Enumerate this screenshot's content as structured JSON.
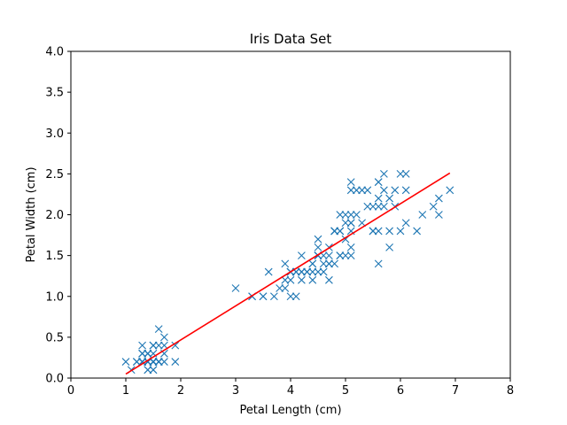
{
  "chart_data": {
    "type": "scatter",
    "title": "Iris Data Set",
    "xlabel": "Petal Length (cm)",
    "ylabel": "Petal Width (cm)",
    "xlim": [
      0,
      8
    ],
    "ylim": [
      0,
      4
    ],
    "xticks": [
      0,
      1,
      2,
      3,
      4,
      5,
      6,
      7,
      8
    ],
    "xtick_labels": [
      "0",
      "1",
      "2",
      "3",
      "4",
      "5",
      "6",
      "7",
      "8"
    ],
    "yticks": [
      0.0,
      0.5,
      1.0,
      1.5,
      2.0,
      2.5,
      3.0,
      3.5,
      4.0
    ],
    "ytick_labels": [
      "0.0",
      "0.5",
      "1.0",
      "1.5",
      "2.0",
      "2.5",
      "3.0",
      "3.5",
      "4.0"
    ],
    "grid": false,
    "legend": "none",
    "series": [
      {
        "marker": "x",
        "color": "#1f77b4",
        "points": [
          [
            1.4,
            0.2
          ],
          [
            1.4,
            0.2
          ],
          [
            1.3,
            0.2
          ],
          [
            1.5,
            0.2
          ],
          [
            1.4,
            0.2
          ],
          [
            1.7,
            0.4
          ],
          [
            1.4,
            0.3
          ],
          [
            1.5,
            0.2
          ],
          [
            1.4,
            0.2
          ],
          [
            1.5,
            0.1
          ],
          [
            1.5,
            0.2
          ],
          [
            1.6,
            0.2
          ],
          [
            1.4,
            0.1
          ],
          [
            1.1,
            0.1
          ],
          [
            1.2,
            0.2
          ],
          [
            1.5,
            0.4
          ],
          [
            1.3,
            0.4
          ],
          [
            1.4,
            0.3
          ],
          [
            1.7,
            0.3
          ],
          [
            1.5,
            0.3
          ],
          [
            1.7,
            0.2
          ],
          [
            1.5,
            0.4
          ],
          [
            1.0,
            0.2
          ],
          [
            1.7,
            0.5
          ],
          [
            1.9,
            0.2
          ],
          [
            1.6,
            0.2
          ],
          [
            1.6,
            0.4
          ],
          [
            1.5,
            0.2
          ],
          [
            1.4,
            0.2
          ],
          [
            1.6,
            0.2
          ],
          [
            1.6,
            0.2
          ],
          [
            1.5,
            0.4
          ],
          [
            1.5,
            0.1
          ],
          [
            1.4,
            0.2
          ],
          [
            1.5,
            0.2
          ],
          [
            1.2,
            0.2
          ],
          [
            1.3,
            0.2
          ],
          [
            1.4,
            0.1
          ],
          [
            1.3,
            0.2
          ],
          [
            1.5,
            0.2
          ],
          [
            1.3,
            0.3
          ],
          [
            1.3,
            0.3
          ],
          [
            1.3,
            0.2
          ],
          [
            1.6,
            0.6
          ],
          [
            1.9,
            0.4
          ],
          [
            1.4,
            0.3
          ],
          [
            1.6,
            0.2
          ],
          [
            1.4,
            0.2
          ],
          [
            1.5,
            0.2
          ],
          [
            1.4,
            0.2
          ],
          [
            4.7,
            1.4
          ],
          [
            4.5,
            1.5
          ],
          [
            4.9,
            1.5
          ],
          [
            4.0,
            1.3
          ],
          [
            4.6,
            1.5
          ],
          [
            4.5,
            1.3
          ],
          [
            4.7,
            1.6
          ],
          [
            3.3,
            1.0
          ],
          [
            4.6,
            1.3
          ],
          [
            3.9,
            1.4
          ],
          [
            3.5,
            1.0
          ],
          [
            4.2,
            1.5
          ],
          [
            4.0,
            1.0
          ],
          [
            4.7,
            1.4
          ],
          [
            3.6,
            1.3
          ],
          [
            4.4,
            1.4
          ],
          [
            4.5,
            1.5
          ],
          [
            4.1,
            1.0
          ],
          [
            4.5,
            1.5
          ],
          [
            3.9,
            1.1
          ],
          [
            4.8,
            1.8
          ],
          [
            4.0,
            1.3
          ],
          [
            4.9,
            1.5
          ],
          [
            4.7,
            1.2
          ],
          [
            4.3,
            1.3
          ],
          [
            4.4,
            1.4
          ],
          [
            4.8,
            1.4
          ],
          [
            5.0,
            1.7
          ],
          [
            4.5,
            1.5
          ],
          [
            3.5,
            1.0
          ],
          [
            3.8,
            1.1
          ],
          [
            3.7,
            1.0
          ],
          [
            3.9,
            1.2
          ],
          [
            5.1,
            1.6
          ],
          [
            4.5,
            1.5
          ],
          [
            4.5,
            1.6
          ],
          [
            4.7,
            1.5
          ],
          [
            4.4,
            1.3
          ],
          [
            4.1,
            1.3
          ],
          [
            4.0,
            1.3
          ],
          [
            4.4,
            1.2
          ],
          [
            4.6,
            1.4
          ],
          [
            4.0,
            1.2
          ],
          [
            3.3,
            1.0
          ],
          [
            4.2,
            1.3
          ],
          [
            4.2,
            1.2
          ],
          [
            4.2,
            1.3
          ],
          [
            4.3,
            1.3
          ],
          [
            3.0,
            1.1
          ],
          [
            4.1,
            1.3
          ],
          [
            6.0,
            2.5
          ],
          [
            5.1,
            1.9
          ],
          [
            5.9,
            2.1
          ],
          [
            5.6,
            1.8
          ],
          [
            5.8,
            2.2
          ],
          [
            6.6,
            2.1
          ],
          [
            4.5,
            1.7
          ],
          [
            6.3,
            1.8
          ],
          [
            5.8,
            1.8
          ],
          [
            6.1,
            2.5
          ],
          [
            5.1,
            2.0
          ],
          [
            5.3,
            1.9
          ],
          [
            5.5,
            2.1
          ],
          [
            5.0,
            2.0
          ],
          [
            5.1,
            2.4
          ],
          [
            5.3,
            2.3
          ],
          [
            5.5,
            1.8
          ],
          [
            6.7,
            2.2
          ],
          [
            6.9,
            2.3
          ],
          [
            5.0,
            1.5
          ],
          [
            5.7,
            2.3
          ],
          [
            4.9,
            2.0
          ],
          [
            6.7,
            2.0
          ],
          [
            4.9,
            1.8
          ],
          [
            5.7,
            2.1
          ],
          [
            6.0,
            1.8
          ],
          [
            4.8,
            1.8
          ],
          [
            4.9,
            1.8
          ],
          [
            5.6,
            2.1
          ],
          [
            5.8,
            1.6
          ],
          [
            6.1,
            1.9
          ],
          [
            6.4,
            2.0
          ],
          [
            5.6,
            2.2
          ],
          [
            5.1,
            1.5
          ],
          [
            5.6,
            1.4
          ],
          [
            6.1,
            2.3
          ],
          [
            5.6,
            2.4
          ],
          [
            5.5,
            1.8
          ],
          [
            4.8,
            1.8
          ],
          [
            5.4,
            2.1
          ],
          [
            5.6,
            2.4
          ],
          [
            5.1,
            2.3
          ],
          [
            5.1,
            1.9
          ],
          [
            5.9,
            2.3
          ],
          [
            5.7,
            2.5
          ],
          [
            5.2,
            2.3
          ],
          [
            5.0,
            1.9
          ],
          [
            5.2,
            2.0
          ],
          [
            5.4,
            2.3
          ],
          [
            5.1,
            1.8
          ]
        ]
      },
      {
        "type": "line",
        "color": "#ff0000",
        "points": [
          [
            1.0,
            0.05
          ],
          [
            6.9,
            2.51
          ]
        ]
      }
    ]
  }
}
